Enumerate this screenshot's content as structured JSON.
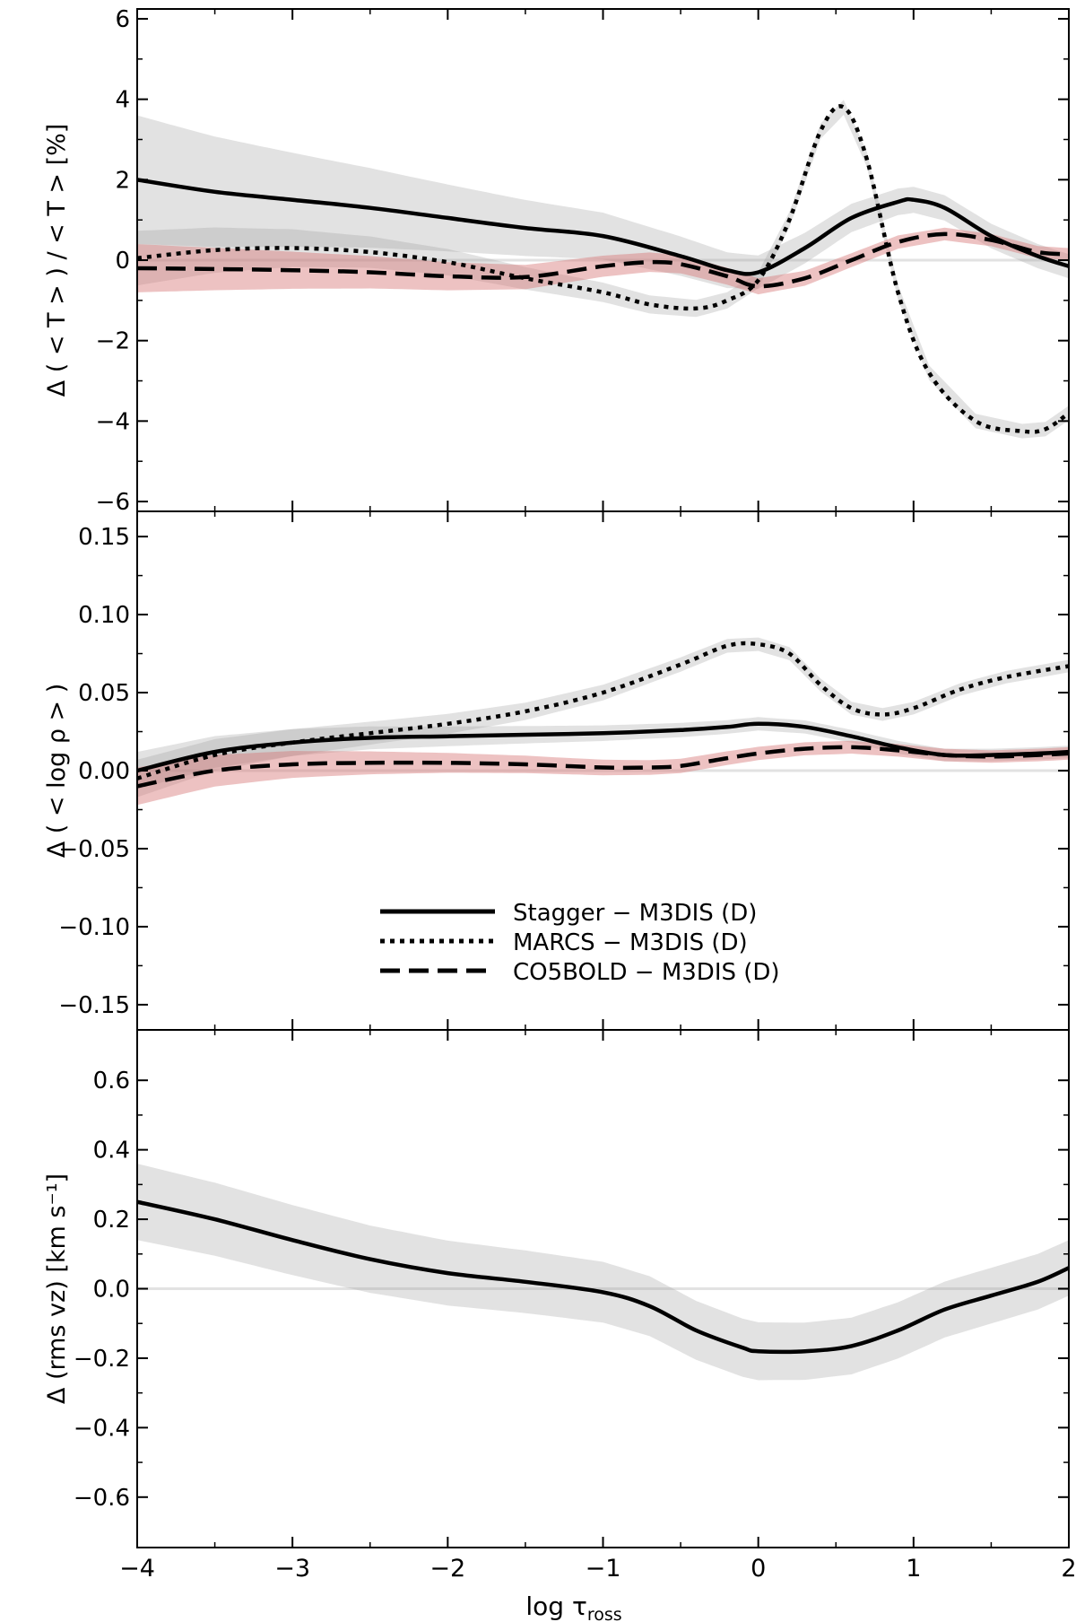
{
  "chart_data": {
    "type": "line",
    "x_range": [
      -4,
      2
    ],
    "x_ticks": [
      -4,
      -3,
      -2,
      -1,
      0,
      1,
      2
    ],
    "x_tick_labels": [
      "−4",
      "−3",
      "−2",
      "−1",
      "0",
      "1",
      "2"
    ],
    "xlabel": "log τross",
    "xlabel_main": "log τ",
    "xlabel_sub": "ross",
    "legend": [
      {
        "label": "Stagger − M3DIS (D)",
        "style": "solid",
        "color": "#000000"
      },
      {
        "label": "MARCS − M3DIS (D)",
        "style": "dotted",
        "color": "#000000"
      },
      {
        "label": "CO5BOLD − M3DIS (D)",
        "style": "dashed",
        "color": "#000000"
      }
    ],
    "panels": [
      {
        "id": "temperature",
        "ylabel": "Δ ( < T > ) / < T >  [%]",
        "ylim": [
          -6.2,
          6.2
        ],
        "y_ticks": [
          -6,
          -4,
          -2,
          0,
          2,
          4,
          6
        ],
        "y_tick_labels": [
          "−6",
          "−4",
          "−2",
          "0",
          "2",
          "4",
          "6"
        ],
        "series": [
          {
            "name": "Stagger − M3DIS (D)",
            "style": "solid",
            "x": [
              -4,
              -3.5,
              -3,
              -2.5,
              -2,
              -1.5,
              -1,
              -0.5,
              -0.2,
              0,
              0.3,
              0.6,
              0.9,
              1.0,
              1.2,
              1.5,
              1.8,
              2
            ],
            "y": [
              2.0,
              1.7,
              1.5,
              1.3,
              1.05,
              0.8,
              0.6,
              0.1,
              -0.25,
              -0.3,
              0.3,
              1.05,
              1.45,
              1.5,
              1.3,
              0.6,
              0.1,
              -0.15
            ]
          },
          {
            "name": "MARCS − M3DIS (D)",
            "style": "dotted",
            "x": [
              -4,
              -3.5,
              -3,
              -2.5,
              -2,
              -1.5,
              -1,
              -0.7,
              -0.4,
              -0.2,
              0,
              0.2,
              0.4,
              0.55,
              0.7,
              0.9,
              1.1,
              1.4,
              1.7,
              1.85,
              2
            ],
            "y": [
              0.05,
              0.25,
              0.3,
              0.2,
              -0.05,
              -0.45,
              -0.8,
              -1.1,
              -1.2,
              -1.0,
              -0.5,
              1.0,
              3.2,
              3.8,
              2.5,
              -0.8,
              -2.8,
              -4.0,
              -4.25,
              -4.2,
              -3.8
            ]
          },
          {
            "name": "CO5BOLD − M3DIS (D)",
            "style": "dashed",
            "x": [
              -4,
              -3.5,
              -3,
              -2.5,
              -2,
              -1.5,
              -1,
              -0.7,
              -0.5,
              -0.2,
              0,
              0.3,
              0.6,
              0.9,
              1.2,
              1.5,
              1.8,
              2
            ],
            "y": [
              -0.2,
              -0.22,
              -0.25,
              -0.3,
              -0.4,
              -0.42,
              -0.15,
              -0.05,
              -0.1,
              -0.4,
              -0.65,
              -0.45,
              0.0,
              0.45,
              0.65,
              0.5,
              0.2,
              0.15
            ]
          }
        ]
      },
      {
        "id": "density",
        "ylabel": "Δ ( < log ρ > )",
        "ylim": [
          -0.165,
          0.165
        ],
        "y_ticks": [
          -0.15,
          -0.1,
          -0.05,
          0,
          0.05,
          0.1,
          0.15
        ],
        "y_tick_labels": [
          "−0.15",
          "−0.10",
          "−0.05",
          "0.00",
          "0.05",
          "0.10",
          "0.15"
        ],
        "series": [
          {
            "name": "Stagger − M3DIS (D)",
            "style": "solid",
            "x": [
              -4,
              -3.5,
              -3,
              -2.5,
              -2,
              -1.5,
              -1,
              -0.5,
              -0.2,
              0,
              0.3,
              0.6,
              0.9,
              1.2,
              1.5,
              1.8,
              2
            ],
            "y": [
              0.0,
              0.012,
              0.018,
              0.021,
              0.022,
              0.023,
              0.024,
              0.026,
              0.028,
              0.03,
              0.028,
              0.022,
              0.015,
              0.01,
              0.01,
              0.011,
              0.012
            ]
          },
          {
            "name": "MARCS − M3DIS (D)",
            "style": "dotted",
            "x": [
              -4,
              -3.5,
              -3,
              -2.5,
              -2,
              -1.5,
              -1,
              -0.5,
              -0.2,
              0,
              0.2,
              0.4,
              0.6,
              0.8,
              1.0,
              1.3,
              1.6,
              2
            ],
            "y": [
              -0.005,
              0.01,
              0.018,
              0.024,
              0.03,
              0.038,
              0.05,
              0.068,
              0.08,
              0.081,
              0.075,
              0.055,
              0.04,
              0.036,
              0.04,
              0.052,
              0.06,
              0.067
            ]
          },
          {
            "name": "CO5BOLD − M3DIS (D)",
            "style": "dashed",
            "x": [
              -4,
              -3.5,
              -3,
              -2.5,
              -2,
              -1.5,
              -1,
              -0.7,
              -0.5,
              -0.2,
              0,
              0.3,
              0.6,
              0.9,
              1.2,
              1.5,
              1.8,
              2
            ],
            "y": [
              -0.01,
              0.0,
              0.004,
              0.005,
              0.005,
              0.004,
              0.002,
              0.002,
              0.003,
              0.008,
              0.011,
              0.014,
              0.015,
              0.013,
              0.01,
              0.009,
              0.01,
              0.011
            ]
          }
        ]
      },
      {
        "id": "velocity",
        "ylabel": "Δ (rms vz) [km s⁻¹]",
        "ylim": [
          -0.74,
          0.74
        ],
        "y_ticks": [
          -0.6,
          -0.4,
          -0.2,
          0,
          0.2,
          0.4,
          0.6
        ],
        "y_tick_labels": [
          "−0.6",
          "−0.4",
          "−0.2",
          "0.0",
          "0.2",
          "0.4",
          "0.6"
        ],
        "series": [
          {
            "name": "Stagger − M3DIS (D)",
            "style": "solid",
            "x": [
              -4,
              -3.5,
              -3,
              -2.5,
              -2,
              -1.5,
              -1,
              -0.7,
              -0.4,
              -0.1,
              0,
              0.3,
              0.6,
              0.9,
              1.2,
              1.5,
              1.8,
              2
            ],
            "y": [
              0.25,
              0.2,
              0.14,
              0.085,
              0.045,
              0.02,
              -0.01,
              -0.05,
              -0.12,
              -0.17,
              -0.18,
              -0.18,
              -0.165,
              -0.12,
              -0.06,
              -0.02,
              0.02,
              0.06
            ]
          }
        ]
      }
    ]
  }
}
